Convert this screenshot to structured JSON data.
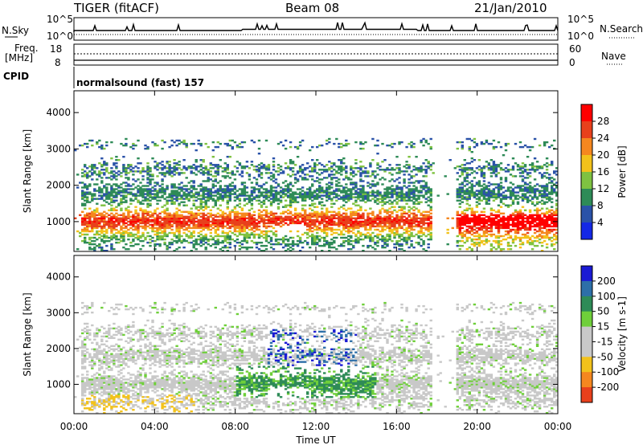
{
  "header": {
    "title": "TIGER (fitACF)",
    "beam": "Beam 08",
    "date": "21/Jan/2010"
  },
  "strip_labels": {
    "nsky": "N.Sky",
    "nsky_ticks": [
      "10^5",
      "10^0"
    ],
    "nsearch": "N.Search",
    "nsearch_ticks": [
      "10^5",
      "10^0"
    ],
    "freq_line1": "Freq.",
    "freq_line2": "[MHz]",
    "freq_ticks": [
      "18",
      "8"
    ],
    "nave": "Nave",
    "nave_ticks": [
      "60",
      "0"
    ],
    "cpid": "CPID",
    "cpid_value": "normalsound (fast) 157"
  },
  "colors": {
    "power": [
      "#1428e6",
      "#2a52a8",
      "#2e8b57",
      "#7fc241",
      "#f2c21b",
      "#f5871f",
      "#e8401c",
      "#ff0000"
    ],
    "velocity": [
      "#1a1ad4",
      "#2d6fa8",
      "#2e8b57",
      "#6fcf3a",
      "#c8c8c8",
      "#c8c8c8",
      "#f2c21b",
      "#f5871f",
      "#e8401c",
      "#ff0000"
    ]
  },
  "chart_data": [
    {
      "type": "heatmap",
      "title": "Power",
      "ylabel": "Slant Range [km]",
      "xlabel": "Time UT",
      "x_ticks": [
        "00:00",
        "04:00",
        "08:00",
        "12:00",
        "16:00",
        "20:00",
        "00:00"
      ],
      "xlim": [
        0,
        24
      ],
      "y_ticks": [
        1000,
        2000,
        3000,
        4000
      ],
      "ylim": [
        180,
        4600
      ],
      "colorbar": {
        "label": "Power [dB]",
        "ticks": [
          4,
          8,
          12,
          16,
          20,
          24,
          28
        ],
        "range": [
          0,
          32
        ]
      }
    },
    {
      "type": "heatmap",
      "title": "Velocity",
      "ylabel": "Slant Range [km]",
      "xlabel": "Time UT",
      "x_ticks": [
        "00:00",
        "04:00",
        "08:00",
        "12:00",
        "16:00",
        "20:00",
        "00:00"
      ],
      "xlim": [
        0,
        24
      ],
      "y_ticks": [
        1000,
        2000,
        3000,
        4000
      ],
      "ylim": [
        180,
        4600
      ],
      "colorbar": {
        "label": "Velocity [m s-1]",
        "ticks": [
          200,
          100,
          50,
          15,
          -15,
          -50,
          -100,
          -200
        ]
      }
    }
  ]
}
